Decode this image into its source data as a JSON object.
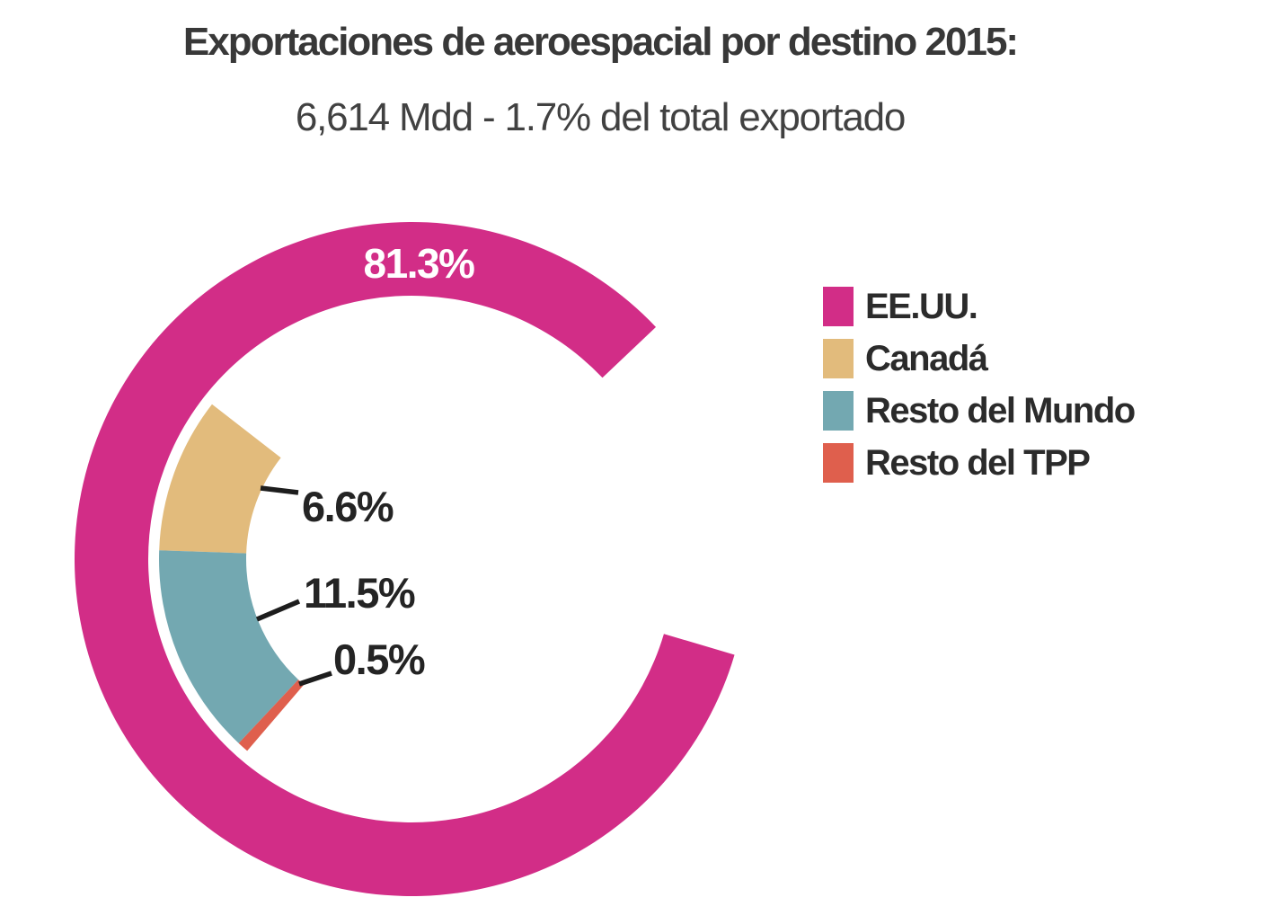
{
  "header": {
    "title": "Exportaciones de aeroespacial por destino 2015:",
    "subtitle": "6,614 Mdd - 1.7% del total exportado"
  },
  "chart_data": {
    "type": "donut",
    "title": "Exportaciones de aeroespacial por destino 2015:",
    "subtitle": "6,614 Mdd - 1.7% del total exportado",
    "unit": "%",
    "legend_position": "right",
    "series": [
      {
        "name": "EE.UU.",
        "value": 81.3,
        "label": "81.3%",
        "color": "#d22d87"
      },
      {
        "name": "Canadá",
        "value": 6.6,
        "label": "6.6%",
        "color": "#e2bb7c"
      },
      {
        "name": "Resto del Mundo",
        "value": 11.5,
        "label": "11.5%",
        "color": "#73a8b1"
      },
      {
        "name": "Resto del TPP",
        "value": 0.5,
        "label": "0.5%",
        "color": "#df5f4d"
      }
    ],
    "colors": {
      "label_on_ring": "#ffffff",
      "label_outside": "#242424",
      "leader_line": "#1d1d1d",
      "title_text": "#383838"
    }
  }
}
